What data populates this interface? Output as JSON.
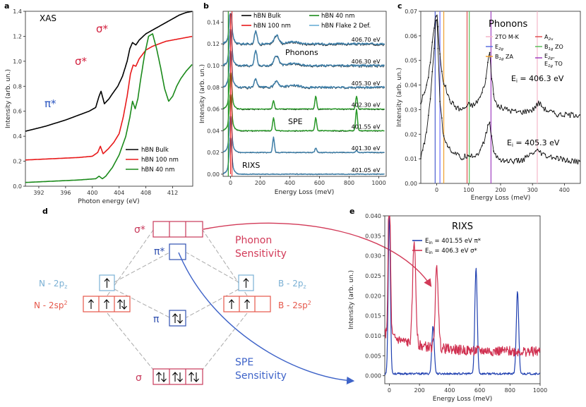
{
  "panels": {
    "a": {
      "label": "a",
      "title": "XAS",
      "xlabel": "Photon energy (eV)",
      "ylabel": "Intensity (arb. un.)",
      "annot_sigma_top": "σ*",
      "annot_sigma_mid": "σ*",
      "annot_pi": "π*",
      "legend": [
        "hBN Bulk",
        "hBN 100 nm",
        "hBN 40 nm"
      ]
    },
    "b": {
      "label": "b",
      "xlabel": "Energy Loss (meV)",
      "ylabel": "Intensity (arb. un.)",
      "legend": [
        "hBN Bulk",
        "hBN 40 nm",
        "hBN 100 nm",
        "hBN Flake 2 Def."
      ],
      "energies": [
        "406.70 eV",
        "406.30 eV",
        "405.30 eV",
        "402.30 eV",
        "401.55 eV",
        "401.30 eV",
        "401.05 eV"
      ],
      "annot_phonons": "Phonons",
      "annot_spe": "SPE",
      "annot_rixs": "RIXS"
    },
    "c": {
      "label": "c",
      "title": "Phonons",
      "xlabel": "Energy Loss (meV)",
      "ylabel": "Intensity (arb. un.)",
      "ei_top": "E",
      "ei_top_sub": "i",
      "ei_top_val": " = 406.3 eV",
      "ei_bot": "E",
      "ei_bot_sub": "i",
      "ei_bot_val": " = 405.3 eV",
      "modes_left": [
        {
          "name": "2TO M-K",
          "sub": "",
          "tail": ""
        },
        {
          "name": "E",
          "sub": "2g",
          "tail": ""
        },
        {
          "name": "B",
          "sub": "1g",
          "tail": " ZA"
        }
      ],
      "modes_right": [
        {
          "name": "A",
          "sub": "2u",
          "tail": ""
        },
        {
          "name": "B",
          "sub": "1g",
          "tail": " ZO"
        },
        {
          "name": "E",
          "sub": "2g",
          "tail": ","
        },
        {
          "name": "E",
          "sub": "1g",
          "tail": " TO"
        }
      ]
    },
    "d": {
      "label": "d",
      "sigma_star": "σ*",
      "pi_star": "π*",
      "pi": "π",
      "sigma": "σ",
      "n2pz": "N - 2p",
      "n2pz_sub": "z",
      "b2pz": "B - 2p",
      "b2pz_sub": "z",
      "n2sp2": "N - 2sp",
      "b2sp2": "B - 2sp",
      "sup2": "2",
      "phonon1": "Phonon",
      "phonon2": "Sensitivity",
      "spe1": "SPE",
      "spe2": "Sensitivity"
    },
    "e": {
      "label": "e",
      "title": "RIXS",
      "xlabel": "Energy Loss (meV)",
      "ylabel": "Intensity (arb. un.)",
      "legend1": "E",
      "legend1_sub": "in",
      "legend1_val": " = 401.55 eV π*",
      "legend2": "E",
      "legend2_sub": "in",
      "legend2_val": " = 406.3 eV σ*"
    }
  },
  "chart_data": [
    {
      "panel": "a",
      "type": "line",
      "title": "XAS",
      "xlabel": "Photon energy (eV)",
      "ylabel": "Intensity (arb. un.)",
      "xlim": [
        390,
        415
      ],
      "ylim": [
        0,
        1.4
      ],
      "xticks": [
        392,
        396,
        400,
        404,
        408,
        412
      ],
      "yticks": [
        0.0,
        0.2,
        0.4,
        0.6,
        0.8,
        1.0,
        1.2,
        1.4
      ],
      "series": [
        {
          "name": "hBN Bulk",
          "color": "#000000",
          "x": [
            390,
            393,
            396,
            398,
            399.5,
            400.5,
            401,
            401.3,
            401.8,
            402.5,
            403,
            403.8,
            404.5,
            405.2,
            405.6,
            406,
            406.5,
            407,
            408,
            409,
            410,
            411,
            412,
            413,
            414,
            415
          ],
          "y": [
            0.44,
            0.48,
            0.53,
            0.57,
            0.6,
            0.63,
            0.72,
            0.76,
            0.66,
            0.7,
            0.74,
            0.8,
            0.88,
            1.0,
            1.1,
            1.15,
            1.13,
            1.17,
            1.22,
            1.25,
            1.28,
            1.31,
            1.34,
            1.37,
            1.39,
            1.4
          ]
        },
        {
          "name": "hBN 100 nm",
          "color": "#e8191a",
          "x": [
            390,
            394,
            398,
            400,
            400.8,
            401.2,
            401.6,
            402.4,
            403.2,
            404,
            404.6,
            405.2,
            405.7,
            406.1,
            406.5,
            407,
            408,
            409,
            410,
            411,
            412,
            413,
            414,
            415
          ],
          "y": [
            0.21,
            0.22,
            0.23,
            0.24,
            0.27,
            0.32,
            0.26,
            0.3,
            0.35,
            0.42,
            0.55,
            0.72,
            0.9,
            0.97,
            0.96,
            1.02,
            1.09,
            1.12,
            1.14,
            1.16,
            1.17,
            1.18,
            1.19,
            1.2
          ]
        },
        {
          "name": "hBN 40 nm",
          "color": "#1b8a1b",
          "x": [
            390,
            394,
            398,
            400.5,
            401,
            401.5,
            402,
            403,
            404,
            405,
            405.6,
            406,
            406.4,
            406.8,
            407.2,
            407.8,
            408.4,
            409,
            409.6,
            410.2,
            410.8,
            411.4,
            412,
            412.6,
            413.2,
            414,
            415
          ],
          "y": [
            0.03,
            0.04,
            0.05,
            0.06,
            0.08,
            0.06,
            0.08,
            0.15,
            0.25,
            0.4,
            0.55,
            0.68,
            0.62,
            0.7,
            0.85,
            1.05,
            1.2,
            1.22,
            1.1,
            0.95,
            0.78,
            0.68,
            0.72,
            0.8,
            0.86,
            0.92,
            0.98
          ]
        }
      ]
    },
    {
      "panel": "b",
      "type": "line",
      "xlabel": "Energy Loss (meV)",
      "ylabel": "Intensity (arb. un.)",
      "xlim": [
        -50,
        1050
      ],
      "ylim": [
        -0.002,
        0.15
      ],
      "xticks": [
        0,
        200,
        400,
        600,
        800,
        1000
      ],
      "yticks": [
        0.0,
        0.02,
        0.04,
        0.06,
        0.08,
        0.1,
        0.12,
        0.14
      ],
      "traces": [
        {
          "energy": "406.70 eV",
          "offset": 0.12,
          "phonon": 0.012,
          "color": "#3f7fa8"
        },
        {
          "energy": "406.30 eV",
          "offset": 0.1,
          "phonon": 0.014,
          "color": "#3f7fa8"
        },
        {
          "energy": "405.30 eV",
          "offset": 0.08,
          "phonon": 0.008,
          "color": "#3f7fa8"
        },
        {
          "energy": "402.30 eV",
          "offset": 0.06,
          "spe": [
            0.008,
            0.012,
            0.012
          ],
          "color": "#2a9a2a"
        },
        {
          "energy": "401.55 eV",
          "offset": 0.04,
          "spe": [
            0.012,
            0.012,
            0.02
          ],
          "color": "#2a9a2a"
        },
        {
          "energy": "401.30 eV",
          "offset": 0.02,
          "spe": [
            0.014,
            0.004,
            0.002
          ],
          "color": "#3f7fa8"
        },
        {
          "energy": "401.05 eV",
          "offset": 0.0,
          "spe": [
            0.0,
            0.0,
            0.0
          ],
          "color": "#3f7fa8"
        }
      ]
    },
    {
      "panel": "c",
      "type": "line",
      "title": "Phonons",
      "xlabel": "Energy Loss (meV)",
      "ylabel": "Intensity (arb. un.)",
      "xlim": [
        -50,
        450
      ],
      "ylim": [
        0,
        0.07
      ],
      "xticks": [
        0,
        100,
        200,
        300,
        400
      ],
      "yticks": [
        0.0,
        0.01,
        0.02,
        0.03,
        0.04,
        0.05,
        0.06,
        0.07
      ],
      "modes_meV": [
        {
          "x": -5,
          "color": "#4a5ed0"
        },
        {
          "x": 10,
          "color": "#7070ff"
        },
        {
          "x": 22,
          "color": "#f0a030"
        },
        {
          "x": 95,
          "color": "#e05050"
        },
        {
          "x": 102,
          "color": "#5abe5a"
        },
        {
          "x": 170,
          "color": "#a040c0"
        },
        {
          "x": 315,
          "color": "#f4b6c8"
        }
      ],
      "series": [
        {
          "name": "Ei = 406.3 eV",
          "x": [
            -50,
            -30,
            -20,
            -10,
            0,
            10,
            20,
            40,
            60,
            80,
            100,
            120,
            140,
            155,
            165,
            170,
            180,
            195,
            220,
            260,
            300,
            320,
            340,
            380,
            420,
            450
          ],
          "y": [
            0.033,
            0.04,
            0.05,
            0.062,
            0.07,
            0.052,
            0.042,
            0.034,
            0.031,
            0.03,
            0.032,
            0.032,
            0.036,
            0.043,
            0.055,
            0.046,
            0.034,
            0.031,
            0.03,
            0.029,
            0.03,
            0.033,
            0.03,
            0.028,
            0.028,
            0.028
          ]
        },
        {
          "name": "Ei = 405.3 eV",
          "x": [
            -50,
            -30,
            -20,
            -10,
            0,
            10,
            20,
            40,
            60,
            80,
            100,
            120,
            140,
            155,
            165,
            170,
            180,
            195,
            220,
            260,
            300,
            320,
            340,
            380,
            420,
            450
          ],
          "y": [
            0.01,
            0.022,
            0.035,
            0.052,
            0.07,
            0.034,
            0.02,
            0.014,
            0.012,
            0.01,
            0.012,
            0.011,
            0.014,
            0.02,
            0.026,
            0.02,
            0.012,
            0.01,
            0.009,
            0.009,
            0.012,
            0.013,
            0.011,
            0.01,
            0.009,
            0.009
          ]
        }
      ]
    },
    {
      "panel": "e",
      "type": "line",
      "title": "RIXS",
      "xlabel": "Energy Loss (meV)",
      "ylabel": "Intensity (arb. un.)",
      "xlim": [
        -30,
        1000
      ],
      "ylim": [
        -0.002,
        0.04
      ],
      "xticks": [
        0,
        200,
        400,
        600,
        800,
        1000
      ],
      "yticks": [
        0.0,
        0.005,
        0.01,
        0.015,
        0.02,
        0.025,
        0.03,
        0.035,
        0.04
      ],
      "series": [
        {
          "name": "Ein = 401.55 eV π*",
          "color": "#2040b0",
          "peaks_meV": [
            0,
            290,
            575,
            850
          ],
          "peak_heights": [
            0.04,
            0.012,
            0.0265,
            0.0205
          ],
          "baseline": 0.0005
        },
        {
          "name": "Ein = 406.3 eV σ*",
          "color": "#d03050",
          "peaks_meV": [
            0,
            165,
            315
          ],
          "peak_heights": [
            0.04,
            0.026,
            0.02
          ],
          "baseline": 0.0065
        }
      ]
    }
  ]
}
